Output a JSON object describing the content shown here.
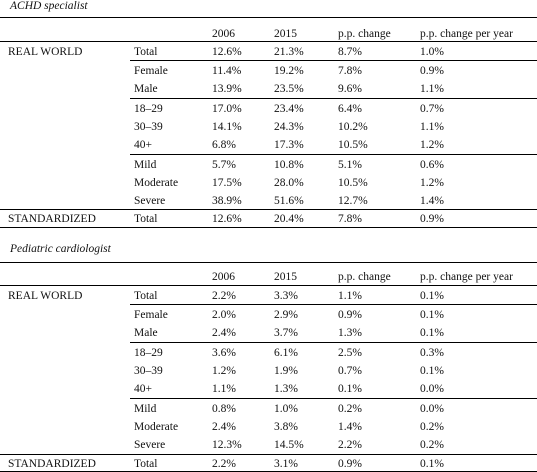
{
  "headers": [
    "2006",
    "2015",
    "p.p. change",
    "p.p. change per year"
  ],
  "sections": [
    {
      "caption": "ACHD specialist",
      "group_real": "REAL WORLD",
      "group_std": "STANDARDIZED",
      "rows": [
        {
          "label": "Total",
          "v": [
            "12.6%",
            "21.3%",
            "8.7%",
            "1.0%"
          ]
        },
        {
          "label": "Female",
          "v": [
            "11.4%",
            "19.2%",
            "7.8%",
            "0.9%"
          ]
        },
        {
          "label": "Male",
          "v": [
            "13.9%",
            "23.5%",
            "9.6%",
            "1.1%"
          ]
        },
        {
          "label": "18–29",
          "v": [
            "17.0%",
            "23.4%",
            "6.4%",
            "0.7%"
          ]
        },
        {
          "label": "30–39",
          "v": [
            "14.1%",
            "24.3%",
            "10.2%",
            "1.1%"
          ]
        },
        {
          "label": "40+",
          "v": [
            "6.8%",
            "17.3%",
            "10.5%",
            "1.2%"
          ]
        },
        {
          "label": "Mild",
          "v": [
            "5.7%",
            "10.8%",
            "5.1%",
            "0.6%"
          ]
        },
        {
          "label": "Moderate",
          "v": [
            "17.5%",
            "28.0%",
            "10.5%",
            "1.2%"
          ]
        },
        {
          "label": "Severe",
          "v": [
            "38.9%",
            "51.6%",
            "12.7%",
            "1.4%"
          ]
        },
        {
          "label": "Total",
          "v": [
            "12.6%",
            "20.4%",
            "7.8%",
            "0.9%"
          ]
        }
      ]
    },
    {
      "caption": "Pediatric cardiologist",
      "group_real": "REAL WORLD",
      "group_std": "STANDARDIZED",
      "rows": [
        {
          "label": "Total",
          "v": [
            "2.2%",
            "3.3%",
            "1.1%",
            "0.1%"
          ]
        },
        {
          "label": "Female",
          "v": [
            "2.0%",
            "2.9%",
            "0.9%",
            "0.1%"
          ]
        },
        {
          "label": "Male",
          "v": [
            "2.4%",
            "3.7%",
            "1.3%",
            "0.1%"
          ]
        },
        {
          "label": "18–29",
          "v": [
            "3.6%",
            "6.1%",
            "2.5%",
            "0.3%"
          ]
        },
        {
          "label": "30–39",
          "v": [
            "1.2%",
            "1.9%",
            "0.7%",
            "0.1%"
          ]
        },
        {
          "label": "40+",
          "v": [
            "1.1%",
            "1.3%",
            "0.1%",
            "0.0%"
          ]
        },
        {
          "label": "Mild",
          "v": [
            "0.8%",
            "1.0%",
            "0.2%",
            "0.0%"
          ]
        },
        {
          "label": "Moderate",
          "v": [
            "2.4%",
            "3.8%",
            "1.4%",
            "0.2%"
          ]
        },
        {
          "label": "Severe",
          "v": [
            "12.3%",
            "14.5%",
            "2.2%",
            "0.2%"
          ]
        },
        {
          "label": "Total",
          "v": [
            "2.2%",
            "3.1%",
            "0.9%",
            "0.1%"
          ]
        }
      ]
    }
  ]
}
